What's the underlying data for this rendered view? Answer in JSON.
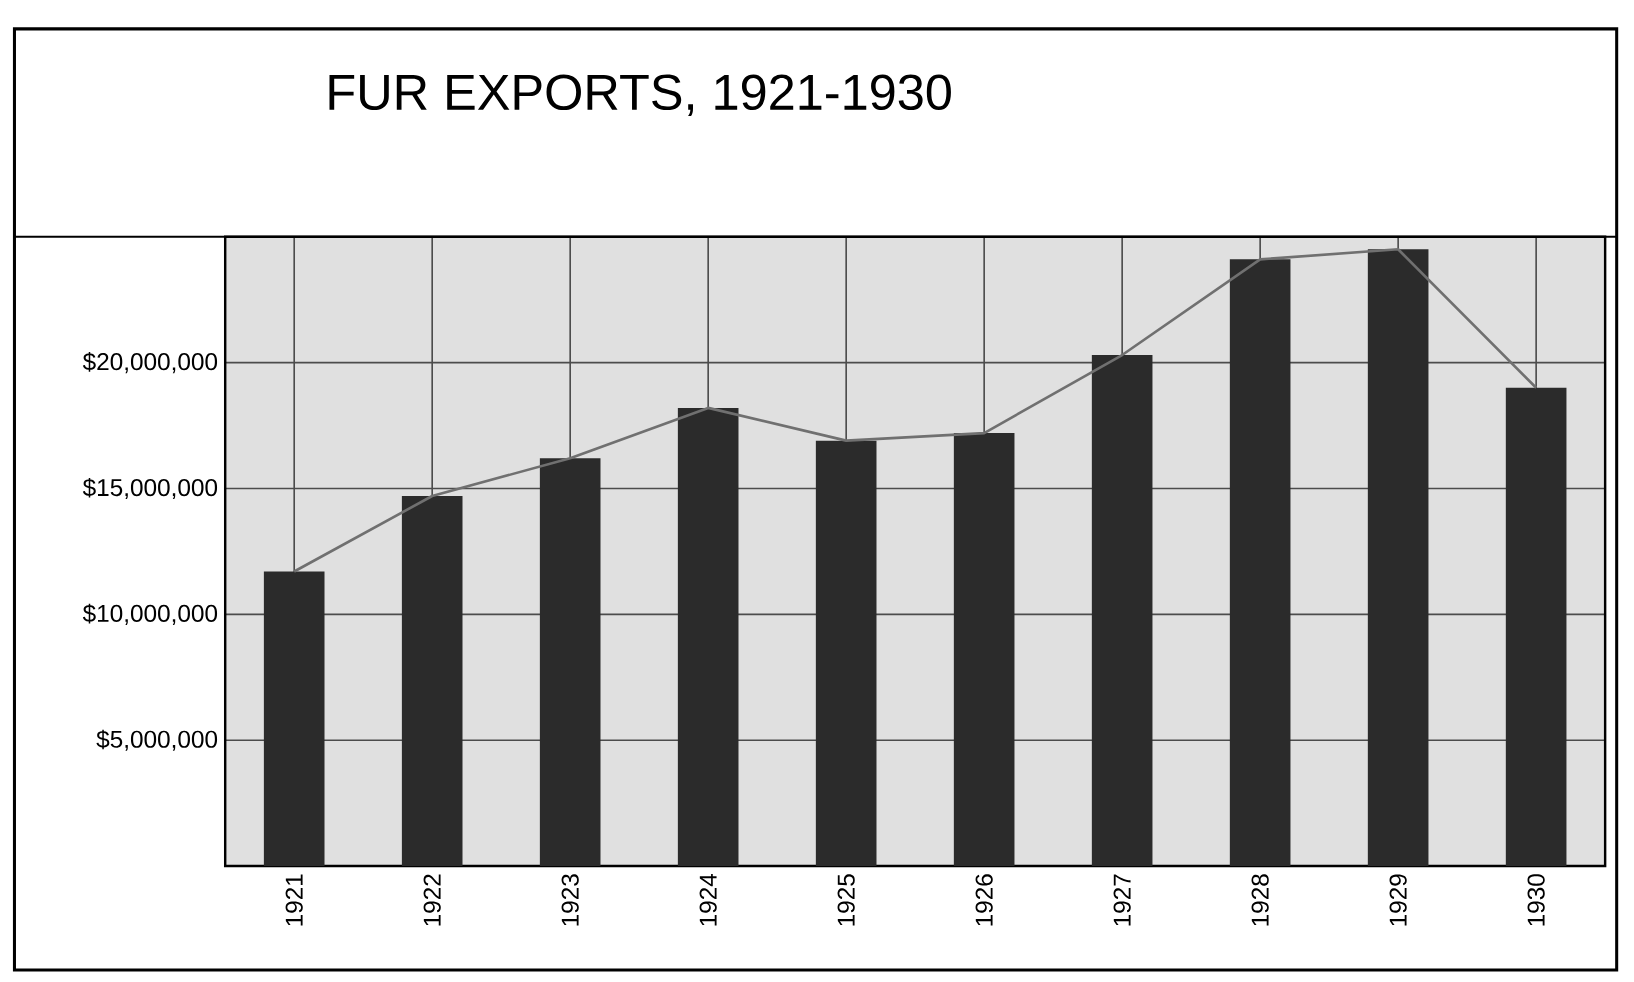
{
  "chart_data": {
    "type": "bar",
    "title": "FUR EXPORTS, 1921-1930",
    "categories": [
      "1921",
      "1922",
      "1923",
      "1924",
      "1925",
      "1926",
      "1927",
      "1928",
      "1929",
      "1930"
    ],
    "series": [
      {
        "color": "#2b2b2b",
        "values": [
          11700000,
          14700000,
          16200000,
          18200000,
          16900000,
          17200000,
          20300000,
          24100000,
          24500000,
          19000000
        ]
      },
      {
        "type": "line",
        "color": "#707070",
        "values": [
          11700000,
          14700000,
          16200000,
          18200000,
          16900000,
          17200000,
          20300000,
          24100000,
          24500000,
          19000000
        ]
      }
    ],
    "ylim": [
      0,
      25000000
    ],
    "yticks": [
      {
        "value": 5000000,
        "label": "$5,000,000"
      },
      {
        "value": 10000000,
        "label": "$10,000,000"
      },
      {
        "value": 15000000,
        "label": "$15,000,000"
      },
      {
        "value": 20000000,
        "label": "$20,000,000"
      }
    ],
    "grid": true,
    "marker": "none",
    "line_style": "solid"
  }
}
